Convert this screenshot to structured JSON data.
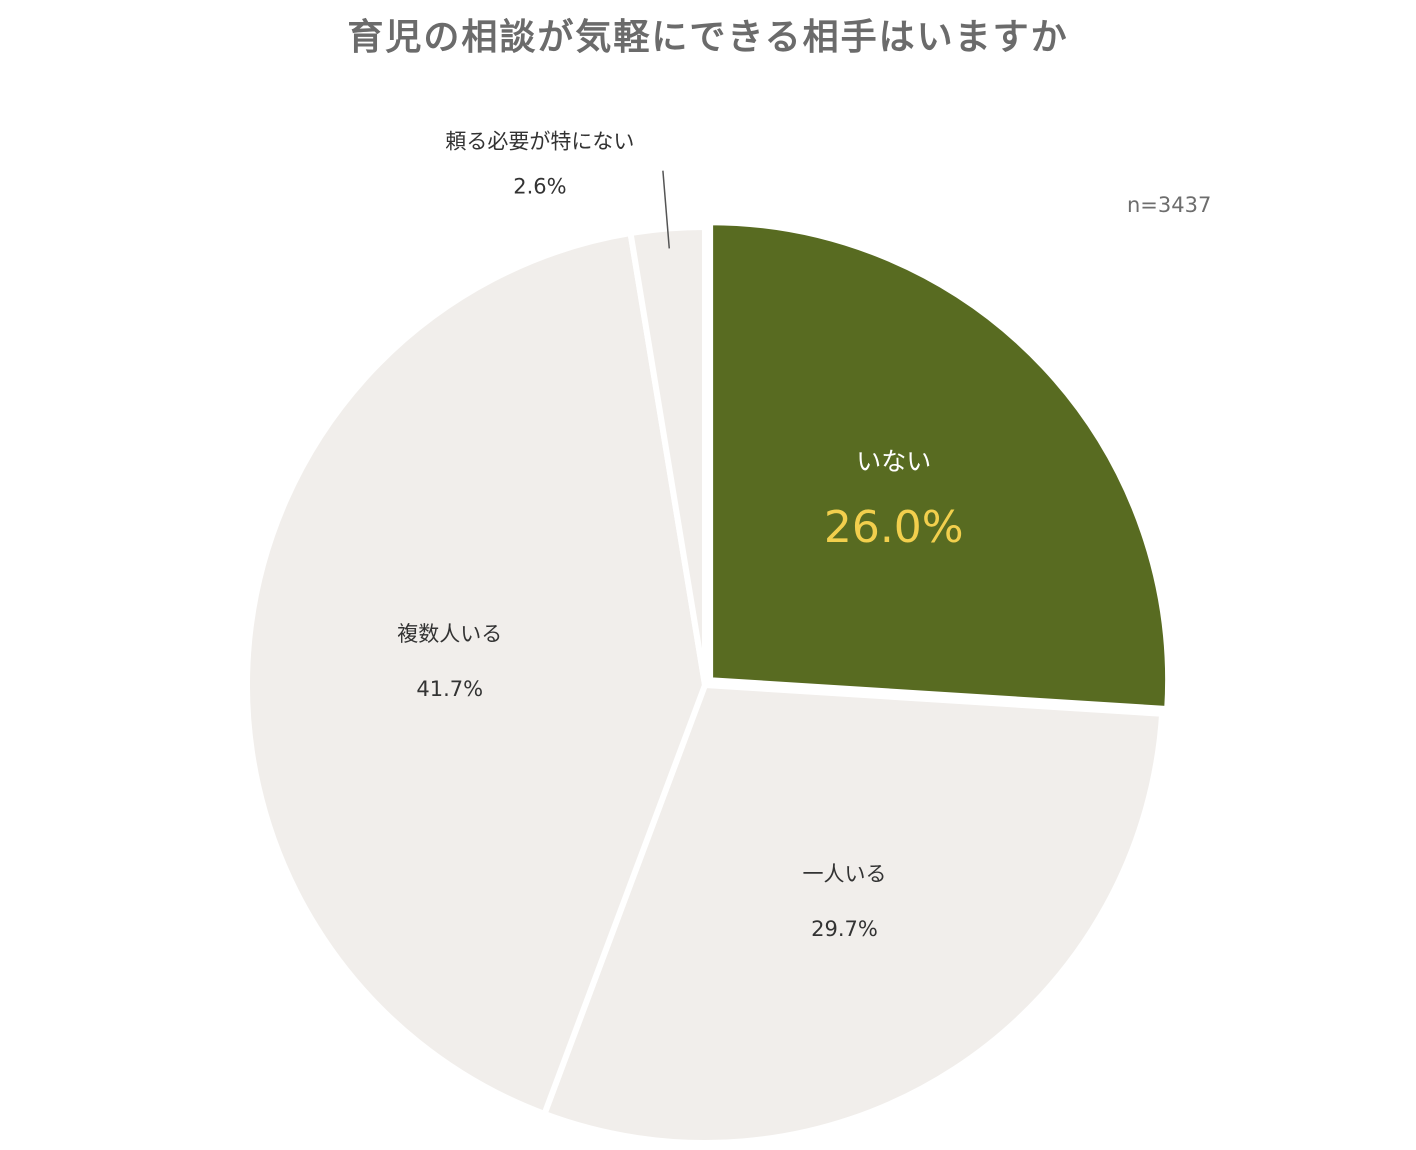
{
  "chart_data": {
    "type": "pie",
    "title": "育児の相談が気軽にできる相手はいますか",
    "note": "n=3437",
    "categories": [
      "いない",
      "一人いる",
      "複数人いる",
      "頼る必要が特にない"
    ],
    "values": [
      26.0,
      29.7,
      41.7,
      2.6
    ],
    "value_labels": [
      "26.0%",
      "29.7%",
      "41.7%",
      "2.6%"
    ],
    "unit": "%",
    "highlight": "いない",
    "exploded": [
      "いない"
    ],
    "start_angle": "12 o'clock",
    "direction": "clockwise",
    "colors": {
      "highlight_slice": "#586b21",
      "other_slices": "#f1eeeb",
      "highlight_value_text": "#f2cf4d",
      "highlight_name_text": "#ffffff",
      "label_text": "#333333",
      "title_text": "#6b6b6b",
      "leader_line": "#555555"
    }
  }
}
